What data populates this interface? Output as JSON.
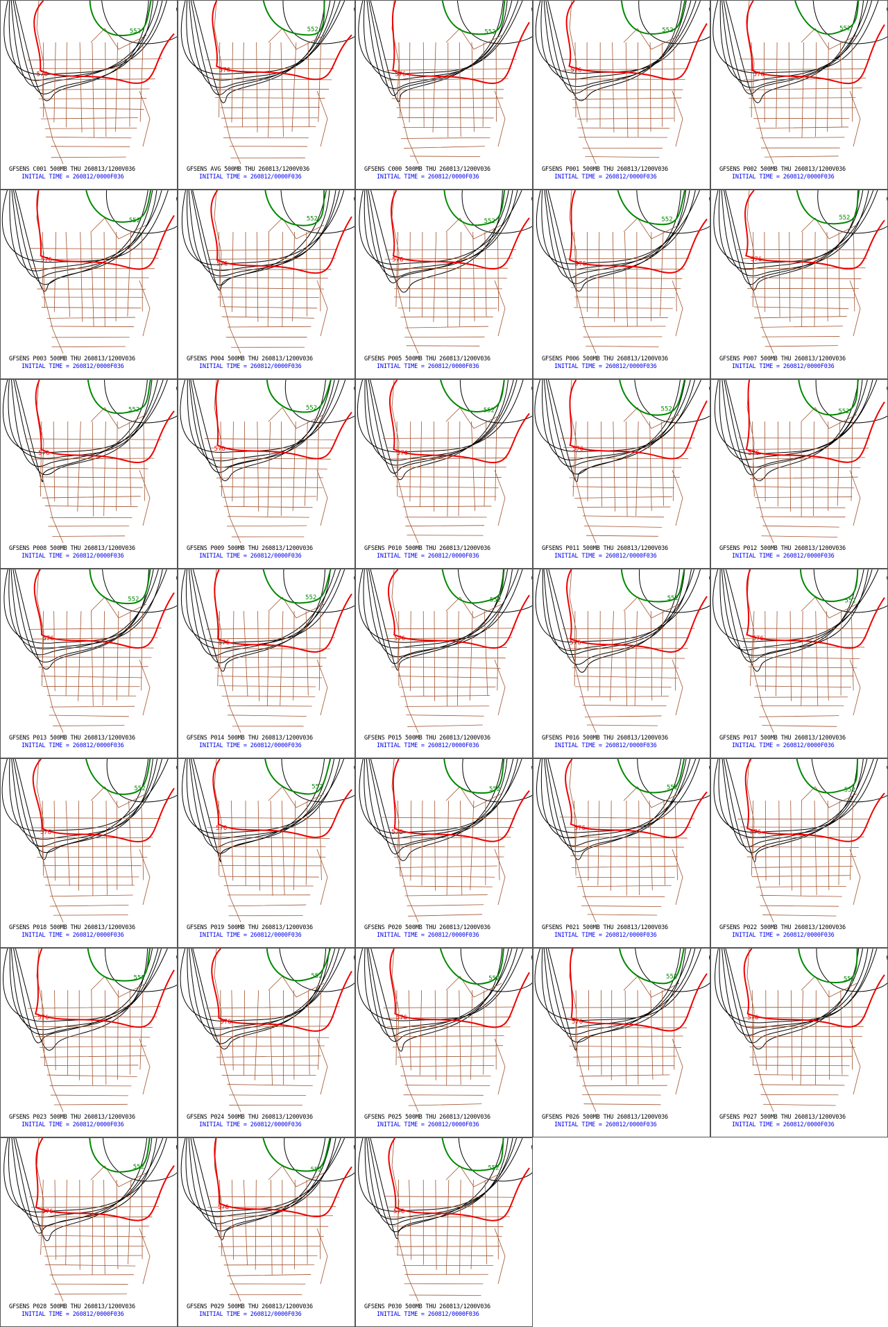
{
  "panels": [
    {
      "title": "GFSENS C001 500MB THU 260813/1200V036",
      "initial": "INITIAL TIME = 260812/0000F036",
      "labels": [
        "552",
        "576"
      ]
    },
    {
      "title": "GFSENS AVG 500MB THU 260813/1200V036",
      "initial": "INITIAL TIME = 260812/0000F036",
      "labels": [
        "552",
        "576"
      ]
    },
    {
      "title": "GFSENS C000 500MB THU 260813/1200V036",
      "initial": "INITIAL TIME = 260812/0000F036",
      "labels": [
        "552",
        "576"
      ]
    },
    {
      "title": "GFSENS P001 500MB THU 260813/1200V036",
      "initial": "INITIAL TIME = 260812/0000F036",
      "labels": [
        "552",
        "576"
      ]
    },
    {
      "title": "GFSENS P002 500MB THU 260813/1200V036",
      "initial": "INITIAL TIME = 260812/0000F036",
      "labels": [
        "552",
        "576"
      ]
    },
    {
      "title": "GFSENS P003 500MB THU 260813/1200V036",
      "initial": "INITIAL TIME = 260812/0000F036",
      "labels": [
        "552",
        "576"
      ]
    },
    {
      "title": "GFSENS P004 500MB THU 260813/1200V036",
      "initial": "INITIAL TIME = 260812/0000F036",
      "labels": [
        "552",
        "576"
      ]
    },
    {
      "title": "GFSENS P005 500MB THU 260813/1200V036",
      "initial": "INITIAL TIME = 260812/0000F036",
      "labels": [
        "552",
        "576"
      ]
    },
    {
      "title": "GFSENS P006 500MB THU 260813/1200V036",
      "initial": "INITIAL TIME = 260812/0000F036",
      "labels": [
        "552",
        "576"
      ]
    },
    {
      "title": "GFSENS P007 500MB THU 260813/1200V036",
      "initial": "INITIAL TIME = 260812/0000F036",
      "labels": [
        "552",
        "576"
      ]
    },
    {
      "title": "GFSENS P008 500MB THU 260813/1200V036",
      "initial": "INITIAL TIME = 260812/0000F036",
      "labels": [
        "552",
        "576"
      ]
    },
    {
      "title": "GFSENS P009 500MB THU 260813/1200V036",
      "initial": "INITIAL TIME = 260812/0000F036",
      "labels": [
        "552",
        "576"
      ]
    },
    {
      "title": "GFSENS P010 500MB THU 260813/1200V036",
      "initial": "INITIAL TIME = 260812/0000F036",
      "labels": [
        "552",
        "576"
      ]
    },
    {
      "title": "GFSENS P011 500MB THU 260813/1200V036",
      "initial": "INITIAL TIME = 260812/0000F036",
      "labels": [
        "552",
        "576"
      ]
    },
    {
      "title": "GFSENS P012 500MB THU 260813/1200V036",
      "initial": "INITIAL TIME = 260812/0000F036",
      "labels": [
        "552",
        "576"
      ]
    },
    {
      "title": "GFSENS P013 500MB THU 260813/1200V036",
      "initial": "INITIAL TIME = 260812/0000F036",
      "labels": [
        "552",
        "576"
      ]
    },
    {
      "title": "GFSENS P014 500MB THU 260813/1200V036",
      "initial": "INITIAL TIME = 260812/0000F036",
      "labels": [
        "552",
        "576"
      ]
    },
    {
      "title": "GFSENS P015 500MB THU 260813/1200V036",
      "initial": "INITIAL TIME = 260812/0000F036",
      "labels": [
        "552",
        "576"
      ]
    },
    {
      "title": "GFSENS P016 500MB THU 260813/1200V036",
      "initial": "INITIAL TIME = 260812/0000F036",
      "labels": [
        "552",
        "576"
      ]
    },
    {
      "title": "GFSENS P017 500MB THU 260813/1200V036",
      "initial": "INITIAL TIME = 260812/0000F036",
      "labels": [
        "552",
        "576"
      ]
    },
    {
      "title": "GFSENS P018 500MB THU 260813/1200V036",
      "initial": "INITIAL TIME = 260812/0000F036",
      "labels": [
        "552",
        "576"
      ]
    },
    {
      "title": "GFSENS P019 500MB THU 260813/1200V036",
      "initial": "INITIAL TIME = 260812/0000F036",
      "labels": [
        "552",
        "576"
      ]
    },
    {
      "title": "GFSENS P020 500MB THU 260813/1200V036",
      "initial": "INITIAL TIME = 260812/0000F036",
      "labels": [
        "552",
        "576"
      ]
    },
    {
      "title": "GFSENS P021 500MB THU 260813/1200V036",
      "initial": "INITIAL TIME = 260812/0000F036",
      "labels": [
        "552",
        "576"
      ]
    },
    {
      "title": "GFSENS P022 500MB THU 260813/1200V036",
      "initial": "INITIAL TIME = 260812/0000F036",
      "labels": [
        "552",
        "576"
      ]
    },
    {
      "title": "GFSENS P023 500MB THU 260813/1200V036",
      "initial": "INITIAL TIME = 260812/0000F036",
      "labels": [
        "552",
        "576"
      ]
    },
    {
      "title": "GFSENS P024 500MB THU 260813/1200V036",
      "initial": "INITIAL TIME = 260812/0000F036",
      "labels": [
        "552",
        "576"
      ]
    },
    {
      "title": "GFSENS P025 500MB THU 260813/1200V036",
      "initial": "INITIAL TIME = 260812/0000F036",
      "labels": [
        "552",
        "576"
      ]
    },
    {
      "title": "GFSENS P026 500MB THU 260813/1200V036",
      "initial": "INITIAL TIME = 260812/0000F036",
      "labels": [
        "552",
        "576"
      ]
    },
    {
      "title": "GFSENS P027 500MB THU 260813/1200V036",
      "initial": "INITIAL TIME = 260812/0000F036",
      "labels": [
        "552",
        "576"
      ]
    },
    {
      "title": "GFSENS P028 500MB THU 260813/1200V036",
      "initial": "INITIAL TIME = 260812/0000F036",
      "labels": [
        "552",
        "576"
      ]
    },
    {
      "title": "GFSENS P029 500MB THU 260813/1200V036",
      "initial": "INITIAL TIME = 260812/0000F036",
      "labels": [
        "552",
        "576"
      ]
    },
    {
      "title": "GFSENS P030 500MB THU 260813/1200V036",
      "initial": "INITIAL TIME = 260812/0000F036",
      "labels": [
        "552",
        "576"
      ]
    }
  ]
}
